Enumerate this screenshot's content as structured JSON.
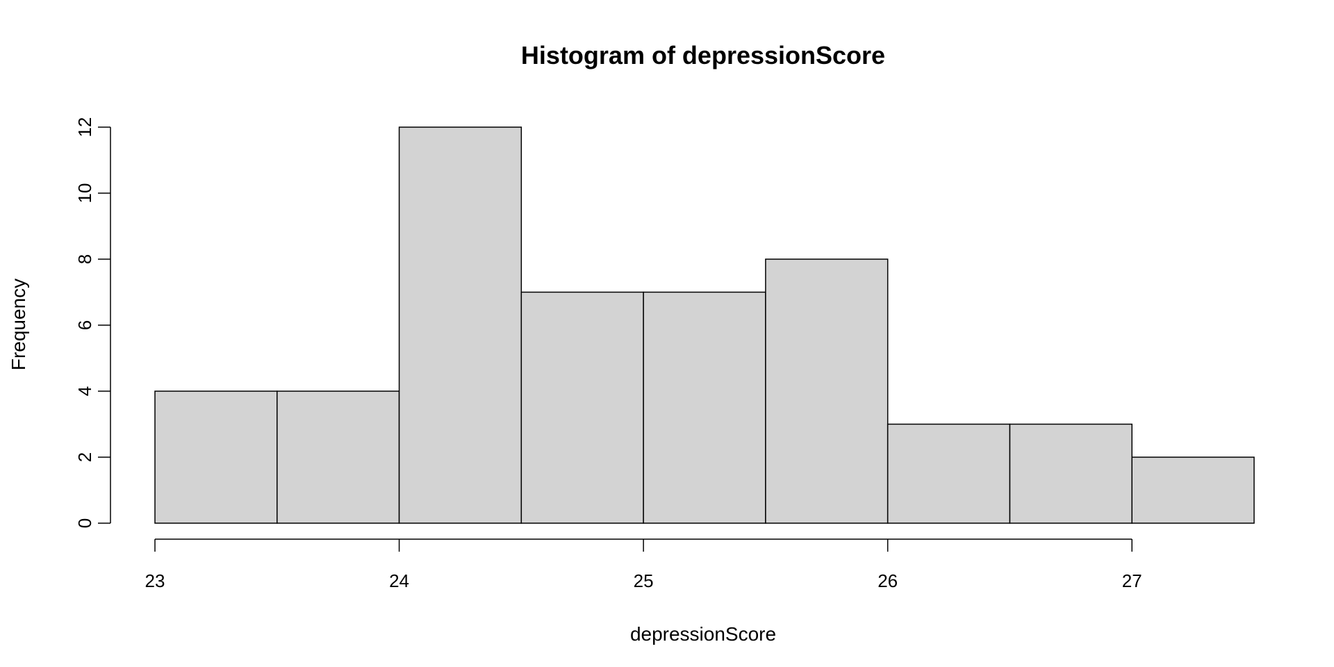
{
  "chart_data": {
    "type": "bar",
    "title": "Histogram of depressionScore",
    "xlabel": "depressionScore",
    "ylabel": "Frequency",
    "bins": [
      {
        "from": 23.0,
        "to": 23.5,
        "count": 4
      },
      {
        "from": 23.5,
        "to": 24.0,
        "count": 4
      },
      {
        "from": 24.0,
        "to": 24.5,
        "count": 12
      },
      {
        "from": 24.5,
        "to": 25.0,
        "count": 7
      },
      {
        "from": 25.0,
        "to": 25.5,
        "count": 7
      },
      {
        "from": 25.5,
        "to": 26.0,
        "count": 8
      },
      {
        "from": 26.0,
        "to": 26.5,
        "count": 3
      },
      {
        "from": 26.5,
        "to": 27.0,
        "count": 3
      },
      {
        "from": 27.0,
        "to": 27.5,
        "count": 2
      }
    ],
    "xlim": [
      23,
      27.5
    ],
    "ylim": [
      0,
      12
    ],
    "x_ticks": [
      23,
      24,
      25,
      26,
      27
    ],
    "y_ticks": [
      0,
      2,
      4,
      6,
      8,
      10,
      12
    ],
    "grid": false,
    "bar_fill": "#d3d3d3",
    "bar_stroke": "#000000"
  }
}
